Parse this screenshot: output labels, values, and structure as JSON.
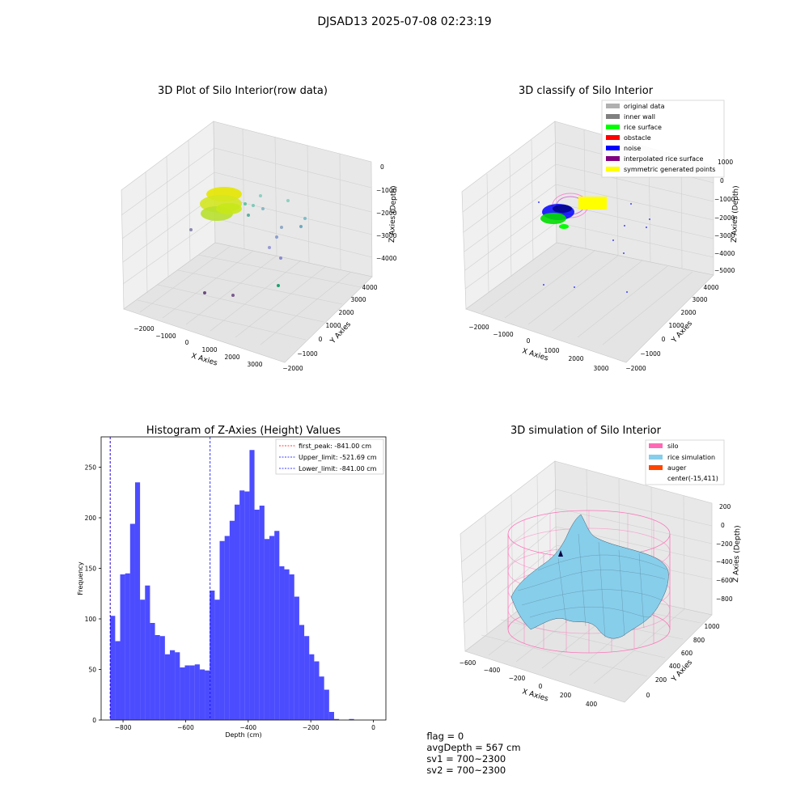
{
  "suptitle": "DJSAD13 2025-07-08 02:23:19",
  "panels": {
    "raw": {
      "title": "3D Plot of Silo Interior(row data)",
      "xlabel": "X Axies",
      "ylabel": "Y Axies",
      "zlabel": "Z Axies (Depth)",
      "xticks": [
        "−2000",
        "−1000",
        "0",
        "1000",
        "2000",
        "3000"
      ],
      "yticks": [
        "−2000",
        "−1000",
        "0",
        "1000",
        "2000",
        "3000",
        "4000"
      ],
      "zticks": [
        "0",
        "−1000",
        "−2000",
        "−3000",
        "−4000"
      ]
    },
    "classify": {
      "title": "3D classify of Silo Interior",
      "xlabel": "X Axies",
      "ylabel": "Y Axies",
      "zlabel": "Z Axies (Depth)",
      "xticks": [
        "−2000",
        "−1000",
        "0",
        "1000",
        "2000",
        "3000"
      ],
      "yticks": [
        "−2000",
        "−1000",
        "0",
        "1000",
        "2000",
        "3000",
        "4000"
      ],
      "zticks": [
        "1000",
        "0",
        "−1000",
        "−2000",
        "−3000",
        "−4000",
        "−5000"
      ],
      "legend": [
        {
          "label": "original data",
          "color": "#b0b0b0"
        },
        {
          "label": "inner wall",
          "color": "#808080"
        },
        {
          "label": "rice surface",
          "color": "#00ff00"
        },
        {
          "label": "obstacle",
          "color": "#ff0000"
        },
        {
          "label": "noise",
          "color": "#0000ff"
        },
        {
          "label": "interpolated rice surface",
          "color": "#800080"
        },
        {
          "label": "symmetric generated points",
          "color": "#ffff00"
        }
      ]
    },
    "simulation": {
      "title": "3D simulation of Silo Interior",
      "xlabel": "X Axies",
      "ylabel": "Y Axies",
      "zlabel": "Z Axies (Depth)",
      "xticks": [
        "−600",
        "−400",
        "−200",
        "0",
        "200",
        "400"
      ],
      "yticks": [
        "0",
        "200",
        "400",
        "600",
        "800",
        "1000"
      ],
      "zticks": [
        "200",
        "0",
        "−200",
        "−400",
        "−600",
        "−800"
      ],
      "legend": [
        {
          "label": "silo",
          "color": "#ff69b4"
        },
        {
          "label": "rice simulation",
          "color": "#87ceeb"
        },
        {
          "label": "auger",
          "color": "#ff4500"
        },
        {
          "label": "center(-15,411)",
          "color": ""
        }
      ]
    }
  },
  "chart_data": {
    "type": "bar",
    "title": "Histogram of Z-Axies (Height) Values",
    "xlabel": "Depth (cm)",
    "ylabel": "Frequency",
    "xlim": [
      -870,
      40
    ],
    "ylim": [
      0,
      280
    ],
    "xticks": [
      -800,
      -600,
      -400,
      -200,
      0
    ],
    "xtick_labels": [
      "−800",
      "−600",
      "−400",
      "−200",
      "0"
    ],
    "yticks": [
      0,
      50,
      100,
      150,
      200,
      250
    ],
    "bar_color": "#0000ff",
    "bin_start": -841,
    "bin_width": 15.9,
    "values": [
      103,
      78,
      144,
      145,
      194,
      235,
      119,
      133,
      96,
      84,
      83,
      65,
      69,
      67,
      52,
      54,
      54,
      55,
      50,
      49,
      128,
      119,
      177,
      182,
      197,
      213,
      227,
      226,
      267,
      208,
      212,
      179,
      182,
      187,
      152,
      149,
      144,
      122,
      94,
      83,
      65,
      58,
      43,
      30,
      8,
      1,
      0,
      0,
      1
    ],
    "vlines": [
      {
        "label": "first_peak: -841.00 cm",
        "x": -841,
        "color": "#ff0000"
      },
      {
        "label": "Upper_limit: -521.69 cm",
        "x": -521.69,
        "color": "#0000ff"
      },
      {
        "label": "Lower_limit: -841.00 cm",
        "x": -841,
        "color": "#0000ff"
      }
    ]
  },
  "footer": {
    "flag": "flag = 0",
    "avg": "avgDepth = 567 cm",
    "sv1": "sv1 = 700~2300",
    "sv2": "sv2 = 700~2300"
  }
}
